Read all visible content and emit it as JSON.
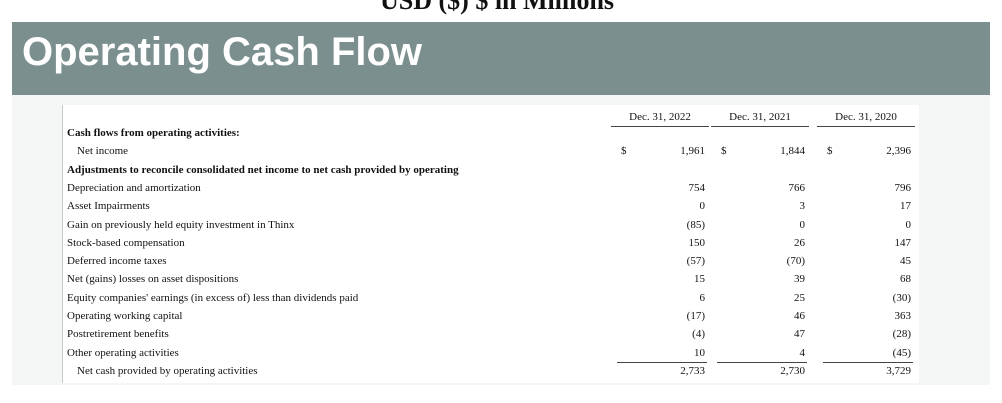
{
  "header": {
    "title": "USD ($) $ in Millions"
  },
  "banner": {
    "title": "Operating Cash Flow"
  },
  "table": {
    "currency": "$",
    "columns": [
      "Dec. 31, 2022",
      "Dec. 31, 2021",
      "Dec. 31, 2020"
    ],
    "rows": [
      [
        "Cash flows from operating activities:"
      ],
      [
        "Net income",
        "1,961",
        "1,844",
        "2,396"
      ],
      [
        "Adjustments to reconcile consolidated net income to net cash provided by operating"
      ],
      [
        "Depreciation and amortization",
        "754",
        "766",
        "796"
      ],
      [
        "Asset Impairments",
        "0",
        "3",
        "17"
      ],
      [
        "Gain on previously held equity investment in Thinx",
        "(85)",
        "0",
        "0"
      ],
      [
        "Stock-based compensation",
        "150",
        "26",
        "147"
      ],
      [
        "Deferred income taxes",
        "(57)",
        "(70)",
        "45"
      ],
      [
        "Net (gains) losses on asset dispositions",
        "15",
        "39",
        "68"
      ],
      [
        "Equity companies' earnings (in excess of) less than dividends paid",
        "6",
        "25",
        "(30)"
      ],
      [
        "Operating working capital",
        "(17)",
        "46",
        "363"
      ],
      [
        "Postretirement benefits",
        "(4)",
        "47",
        "(28)"
      ],
      [
        "Other operating activities",
        "10",
        "4",
        "(45)"
      ],
      [
        "Net cash provided by operating activities",
        "2,733",
        "2,730",
        "3,729"
      ]
    ]
  }
}
